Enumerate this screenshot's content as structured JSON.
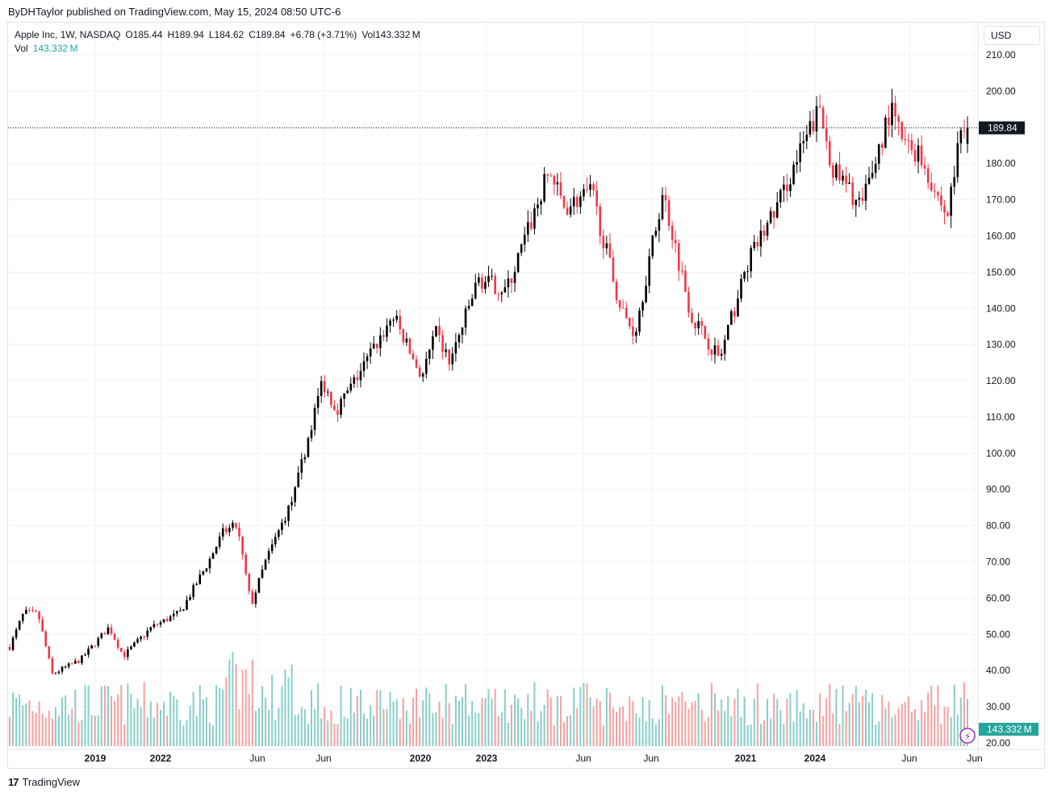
{
  "caption": "ByDHTaylor published on TradingView.com, May 15, 2024 08:50 UTC-6",
  "legend": {
    "symbol": "Apple Inc, 1W, NASDAQ",
    "open": "O185.44",
    "high": "H189.94",
    "low": "L184.62",
    "close": "C189.84",
    "change": "+6.78 (+3.71%)",
    "volume": "Vol143.332 M",
    "vol_label": "Vol",
    "vol_value": "143.332 M"
  },
  "currency": "USD",
  "footer": {
    "brand": "TradingView",
    "mark": "17"
  },
  "colors": {
    "up": "#000000",
    "down": "#f23645",
    "vol_up": "#26a69a",
    "vol_down": "#ef5350",
    "last_price_bg": "#131722",
    "vol_badge_bg": "#26a69a"
  },
  "chart_data": {
    "type": "candlestick",
    "title": "Apple Inc, 1W, NASDAQ",
    "y_axis": {
      "ticks": [
        "210.00",
        "200.00",
        "190.00",
        "180.00",
        "170.00",
        "160.00",
        "150.00",
        "140.00",
        "130.00",
        "120.00",
        "110.00",
        "100.00",
        "90.00",
        "80.00",
        "70.00",
        "60.00",
        "50.00",
        "40.00",
        "30.00",
        "20.00"
      ],
      "range": [
        20,
        210
      ]
    },
    "x_axis": {
      "ticks": [
        "2019",
        "Jun",
        "2020",
        "Jun",
        "2021",
        "Jun",
        "2022",
        "Jun",
        "2023",
        "Jun",
        "2024",
        "Jun"
      ],
      "bold": [
        "2019",
        "2020",
        "2021",
        "2022",
        "2023",
        "2024"
      ]
    },
    "last_price": "189.84",
    "volume_badge": "143.332 M",
    "weekly_close_anchors": [
      [
        "2018-10",
        46.5
      ],
      [
        "2018-11",
        56.0
      ],
      [
        "2018-12",
        55.5
      ],
      [
        "2019-01",
        39.0
      ],
      [
        "2019-03",
        43.0
      ],
      [
        "2019-05",
        52.0
      ],
      [
        "2019-06",
        44.0
      ],
      [
        "2019-08",
        52.0
      ],
      [
        "2019-10",
        56.0
      ],
      [
        "2019-12",
        70.0
      ],
      [
        "2020-01",
        78.0
      ],
      [
        "2020-02",
        80.0
      ],
      [
        "2020-03",
        58.0
      ],
      [
        "2020-04",
        70.0
      ],
      [
        "2020-06",
        88.0
      ],
      [
        "2020-08",
        120.0
      ],
      [
        "2020-09",
        112.0
      ],
      [
        "2020-10",
        118.0
      ],
      [
        "2021-01",
        138.0
      ],
      [
        "2021-03",
        121.0
      ],
      [
        "2021-04",
        133.0
      ],
      [
        "2021-05",
        125.0
      ],
      [
        "2021-07",
        148.0
      ],
      [
        "2021-09",
        145.0
      ],
      [
        "2021-12",
        178.0
      ],
      [
        "2022-01",
        168.0
      ],
      [
        "2022-03",
        172.0
      ],
      [
        "2022-05",
        140.0
      ],
      [
        "2022-06",
        133.0
      ],
      [
        "2022-08",
        172.0
      ],
      [
        "2022-10",
        138.0
      ],
      [
        "2022-12",
        126.0
      ],
      [
        "2023-02",
        153.0
      ],
      [
        "2023-04",
        168.0
      ],
      [
        "2023-06",
        186.0
      ],
      [
        "2023-07",
        195.0
      ],
      [
        "2023-08",
        178.0
      ],
      [
        "2023-10",
        168.0
      ],
      [
        "2023-12",
        195.0
      ],
      [
        "2024-01",
        185.0
      ],
      [
        "2024-02",
        183.0
      ],
      [
        "2024-04",
        165.0
      ],
      [
        "2024-05",
        189.84
      ]
    ]
  }
}
